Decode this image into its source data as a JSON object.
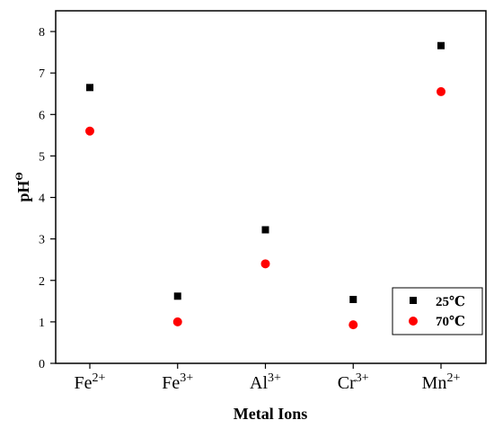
{
  "chart_data": {
    "type": "scatter",
    "categories": [
      {
        "base": "Fe",
        "sup": "2+"
      },
      {
        "base": "Fe",
        "sup": "3+"
      },
      {
        "base": "Al",
        "sup": "3+"
      },
      {
        "base": "Cr",
        "sup": "3+"
      },
      {
        "base": "Mn",
        "sup": "2+"
      }
    ],
    "series": [
      {
        "name": "25℃",
        "marker": "square",
        "color": "#000000",
        "values": [
          6.65,
          1.62,
          3.22,
          1.54,
          7.66
        ]
      },
      {
        "name": "70℃",
        "marker": "circle",
        "color": "#ff0000",
        "values": [
          5.6,
          1.0,
          2.4,
          0.93,
          6.55
        ]
      }
    ],
    "xlabel": "Metal Ions",
    "ylabel": {
      "base": "pH",
      "sup": "Θ"
    },
    "ylim": [
      0,
      8.5
    ],
    "yticks": [
      0,
      1,
      2,
      3,
      4,
      5,
      6,
      7,
      8
    ],
    "grid": false,
    "legend_position": "bottom-right"
  }
}
